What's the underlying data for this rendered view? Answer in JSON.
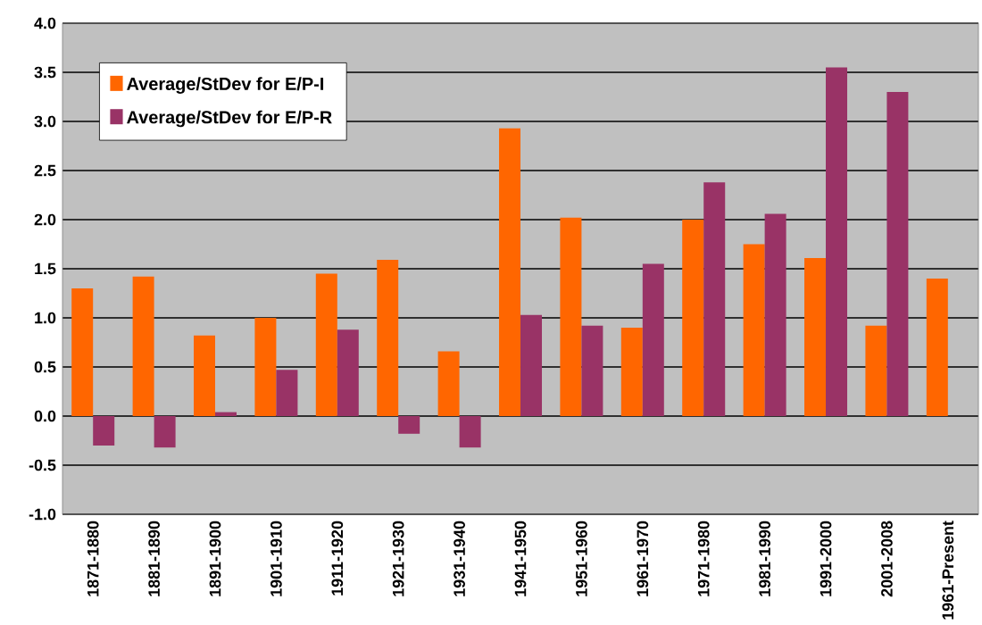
{
  "chart_data": {
    "type": "bar",
    "categories": [
      "1871-1880",
      "1881-1890",
      "1891-1900",
      "1901-1910",
      "1911-1920",
      "1921-1930",
      "1931-1940",
      "1941-1950",
      "1951-1960",
      "1961-1970",
      "1971-1980",
      "1981-1990",
      "1991-2000",
      "2001-2008",
      "1961-Present"
    ],
    "series": [
      {
        "name": "Average/StDev for E/P-I",
        "color": "#ff6600",
        "values": [
          1.3,
          1.42,
          0.82,
          1.0,
          1.45,
          1.59,
          0.66,
          2.93,
          2.02,
          0.9,
          2.0,
          1.75,
          1.61,
          0.92,
          1.4
        ]
      },
      {
        "name": "Average/StDev for E/P-R",
        "color": "#993366",
        "values": [
          -0.3,
          -0.32,
          0.04,
          0.47,
          0.88,
          -0.18,
          -0.32,
          1.03,
          0.92,
          1.55,
          2.38,
          2.06,
          3.55,
          3.3,
          null
        ]
      }
    ],
    "ylim": [
      -1,
      4
    ],
    "yticks": [
      {
        "value": -1,
        "label": "-1.0"
      },
      {
        "value": -0.5,
        "label": "-0.5"
      },
      {
        "value": 0,
        "label": "0.0"
      },
      {
        "value": 0.5,
        "label": "0.5"
      },
      {
        "value": 1,
        "label": "1.0"
      },
      {
        "value": 1.5,
        "label": "1.5"
      },
      {
        "value": 2,
        "label": "2.0"
      },
      {
        "value": 2.5,
        "label": "2.5"
      },
      {
        "value": 3,
        "label": "3.0"
      },
      {
        "value": 3.5,
        "label": "3.5"
      },
      {
        "value": 4,
        "label": "4.0"
      }
    ],
    "grid": "y",
    "legend": "top left"
  }
}
